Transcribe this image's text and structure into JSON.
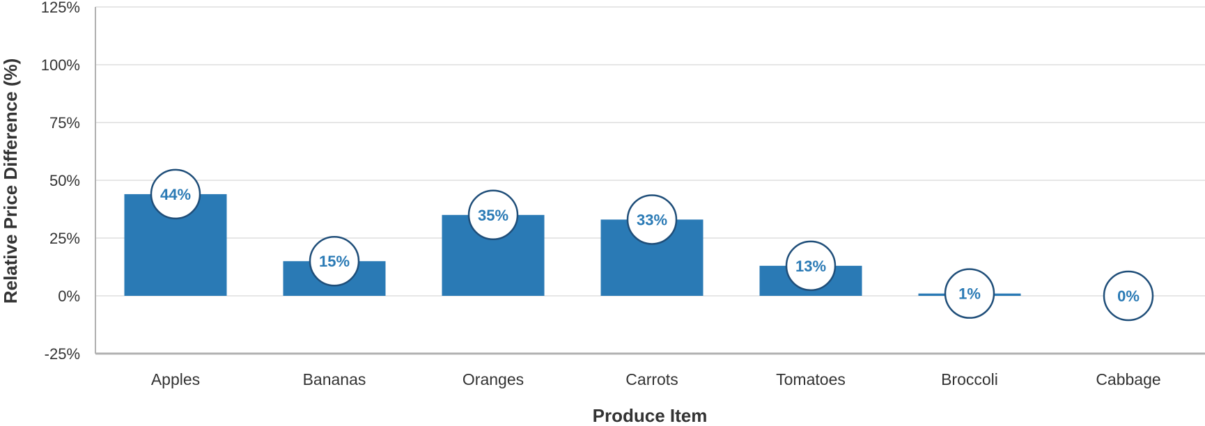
{
  "chart_data": {
    "type": "bar",
    "title": "",
    "xlabel": "Produce Item",
    "ylabel": "Relative Price Difference (%)",
    "categories": [
      "Apples",
      "Bananas",
      "Oranges",
      "Carrots",
      "Tomatoes",
      "Broccoli",
      "Cabbage"
    ],
    "values": [
      44,
      15,
      35,
      33,
      13,
      1,
      0
    ],
    "data_labels": [
      "44%",
      "15%",
      "35%",
      "33%",
      "13%",
      "1%",
      "0%"
    ],
    "ylim": [
      -25,
      125
    ],
    "yticks": [
      -25,
      0,
      25,
      50,
      75,
      100,
      125
    ],
    "ytick_labels": [
      "-25%",
      "0%",
      "25%",
      "50%",
      "75%",
      "100%",
      "125%"
    ],
    "grid": true,
    "legend": "none",
    "colors": {
      "bar": "#2a7ab5",
      "label_border": "#1f4e79",
      "label_text": "#2a7ab5",
      "grid": "#e6e6e6",
      "axis": "#b0b0b0",
      "text": "#333333"
    }
  }
}
